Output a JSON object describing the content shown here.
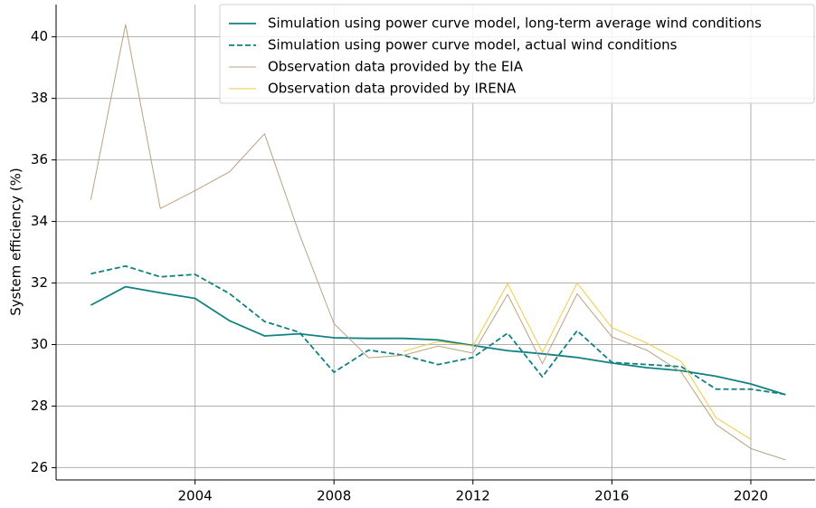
{
  "chart_data": {
    "type": "line",
    "y_label": "System efficiency (%)",
    "x": [
      2001,
      2002,
      2003,
      2004,
      2005,
      2006,
      2007,
      2008,
      2009,
      2010,
      2011,
      2012,
      2013,
      2014,
      2015,
      2016,
      2017,
      2018,
      2019,
      2020,
      2021
    ],
    "xlim": [
      2000,
      2021.85
    ],
    "xticks": [
      2004,
      2008,
      2012,
      2016,
      2020
    ],
    "ylim": [
      25.6,
      41.05
    ],
    "yticks": [
      26,
      28,
      30,
      32,
      34,
      36,
      38,
      40
    ],
    "grid": true,
    "legend": "upper right",
    "series": [
      {
        "name": "Simulation using power curve model, long-term average wind conditions",
        "color": "#138181",
        "linestyle": "solid",
        "linewidth": 1.8,
        "values": [
          31.28,
          31.88,
          31.68,
          31.5,
          30.77,
          30.28,
          30.35,
          30.22,
          30.2,
          30.2,
          30.15,
          29.97,
          29.8,
          29.7,
          29.58,
          29.4,
          29.25,
          29.15,
          28.97,
          28.72,
          28.37
        ]
      },
      {
        "name": "Simulation using power curve model, actual wind conditions",
        "color": "#138181",
        "linestyle": "dashed",
        "linewidth": 1.8,
        "values": [
          32.3,
          32.55,
          32.2,
          32.28,
          31.65,
          30.75,
          30.4,
          29.1,
          29.82,
          29.65,
          29.35,
          29.58,
          30.37,
          28.95,
          30.45,
          29.42,
          29.35,
          29.28,
          28.55,
          28.55,
          28.38
        ]
      },
      {
        "name": "Observation data provided by the EIA",
        "color": "#b9a283",
        "linestyle": "solid",
        "linewidth": 1,
        "values": [
          34.7,
          40.4,
          34.42,
          35.0,
          35.62,
          36.85,
          33.6,
          30.68,
          29.57,
          29.65,
          29.95,
          29.72,
          31.63,
          29.38,
          31.65,
          30.25,
          29.82,
          29.1,
          27.4,
          26.62,
          26.25
        ]
      },
      {
        "name": "Observation data provided by IRENA",
        "color": "#eecb44",
        "linestyle": "solid",
        "linewidth": 1,
        "values": [
          null,
          null,
          null,
          null,
          null,
          null,
          null,
          null,
          null,
          29.78,
          30.1,
          29.95,
          31.98,
          29.75,
          32.0,
          30.55,
          30.05,
          29.45,
          27.62,
          26.92,
          null
        ]
      }
    ]
  }
}
